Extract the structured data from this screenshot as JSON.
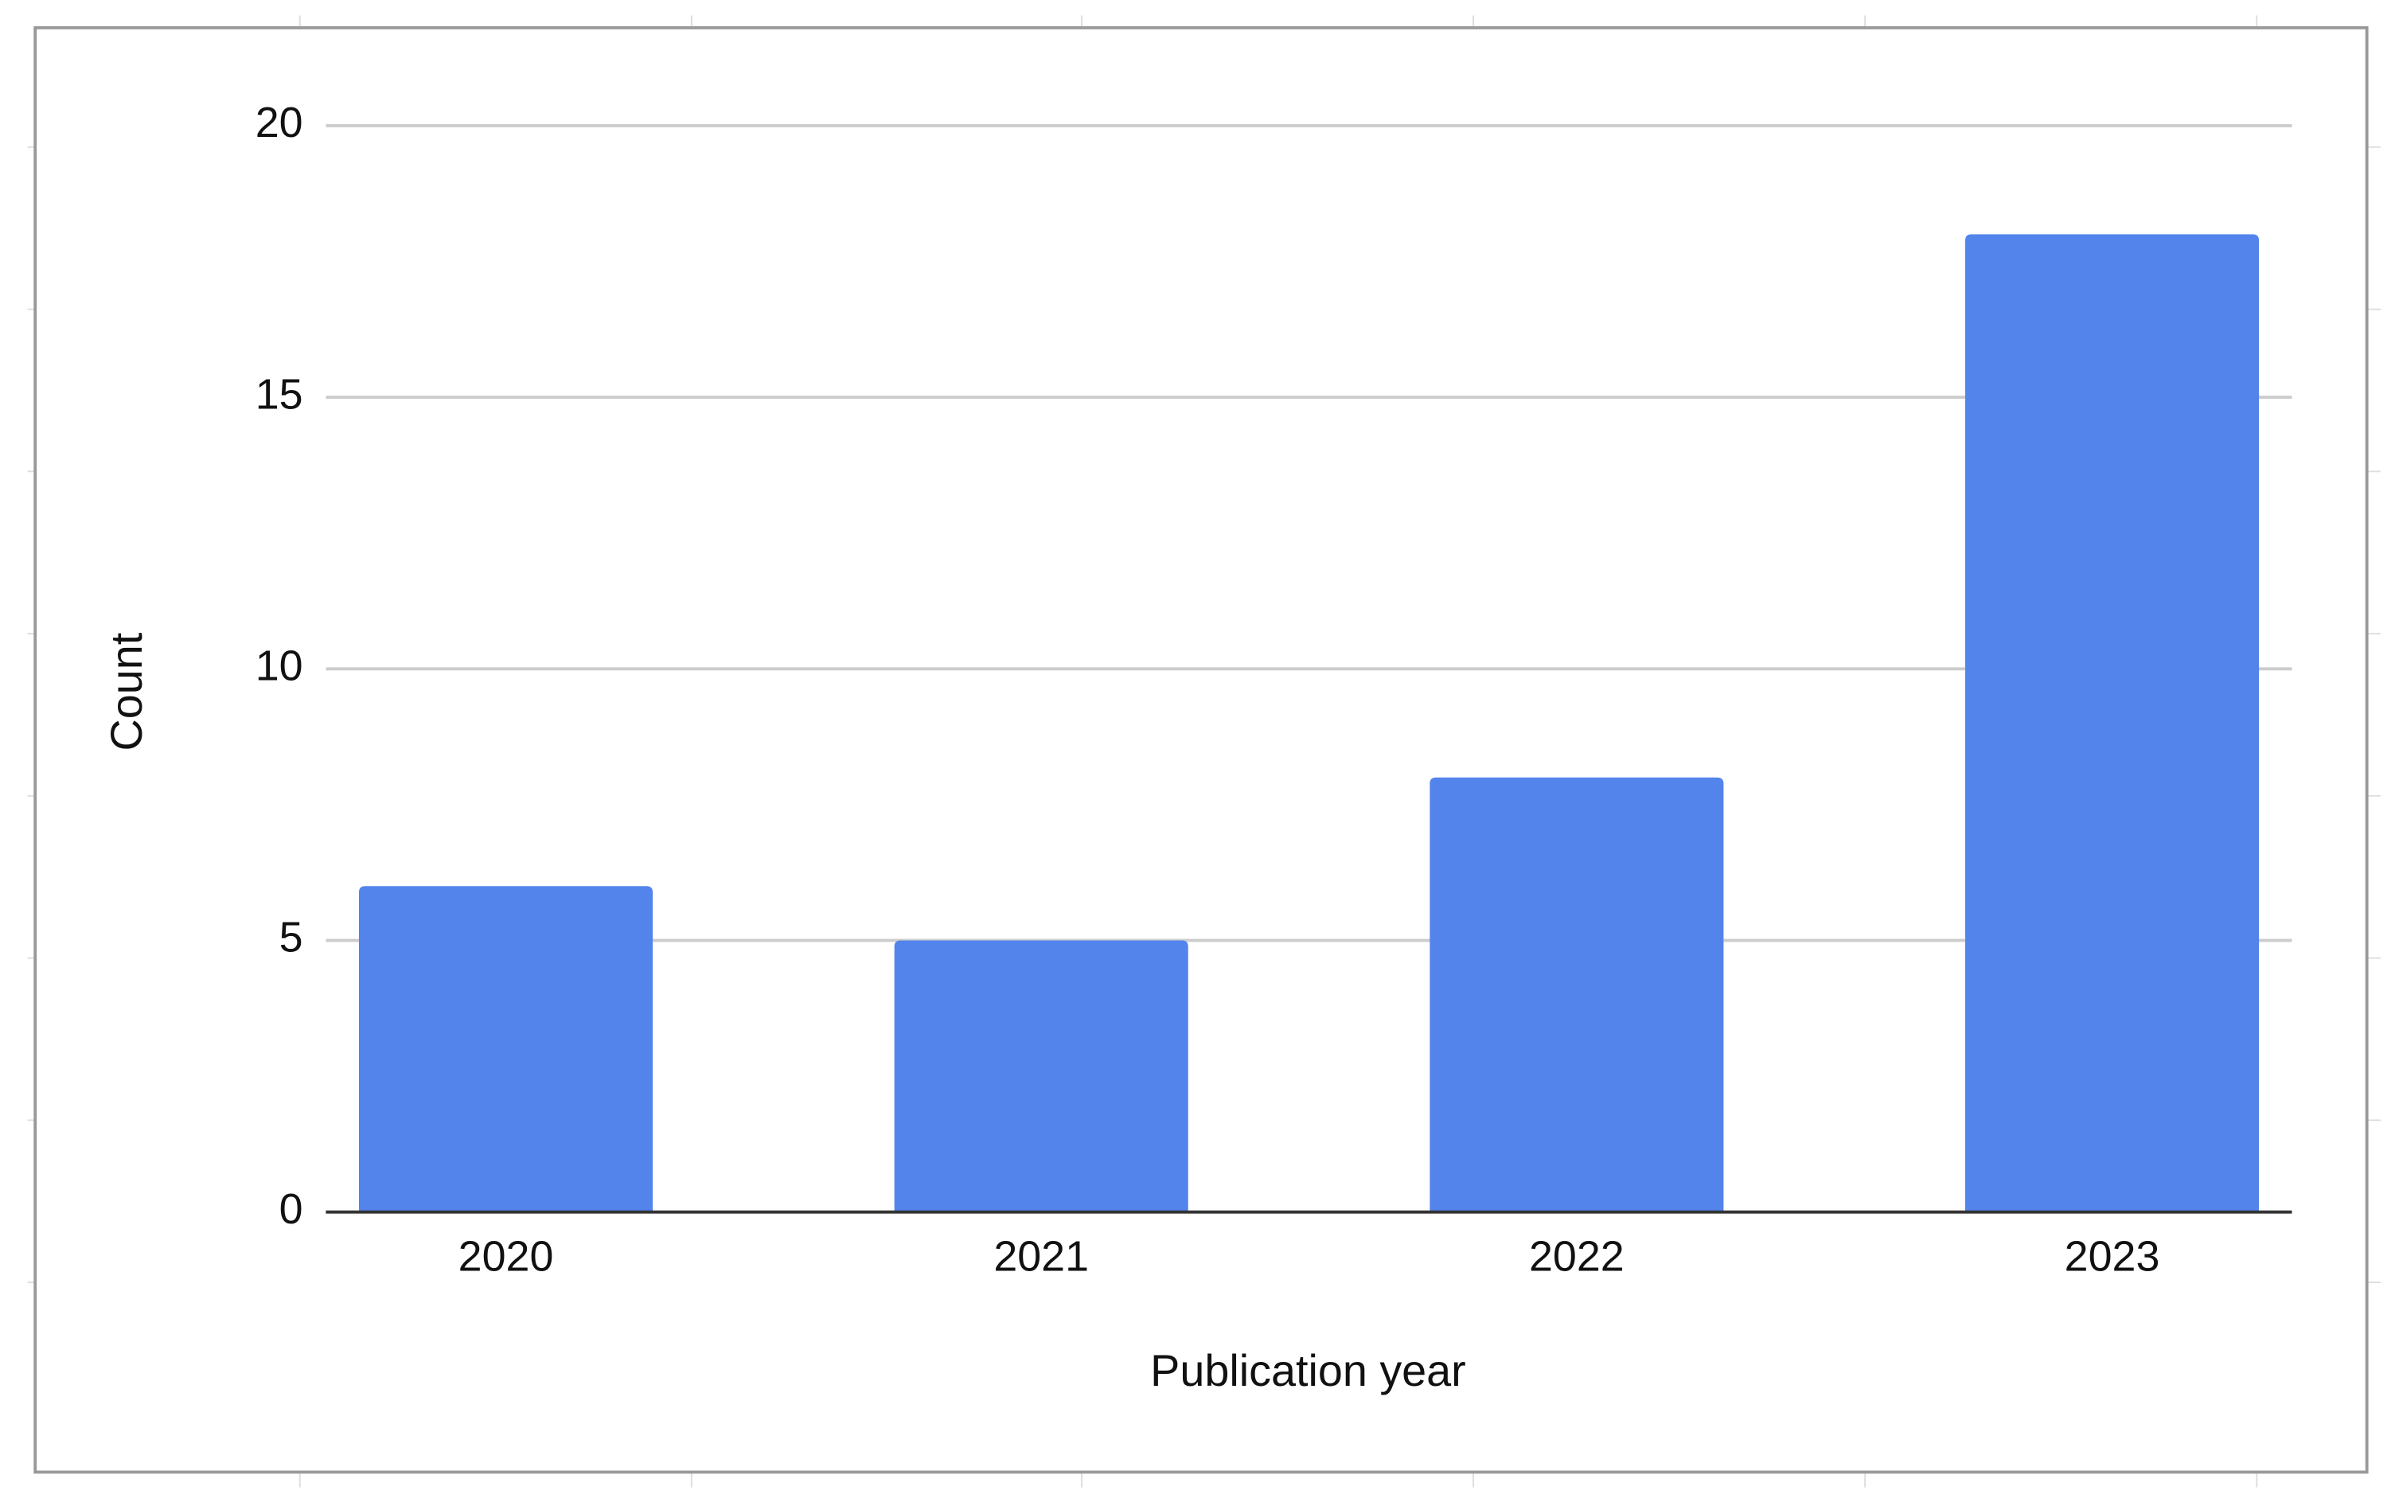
{
  "chart_data": {
    "type": "bar",
    "x_label": "Publication year",
    "y_label": "Count",
    "categories": [
      "2020",
      "2021",
      "2022",
      "2023"
    ],
    "values": [
      6,
      5,
      8,
      18
    ],
    "color": "#5384ec",
    "ylim": [
      0,
      20
    ],
    "yticks": [
      0,
      5,
      10,
      15,
      20
    ],
    "grid": true
  }
}
